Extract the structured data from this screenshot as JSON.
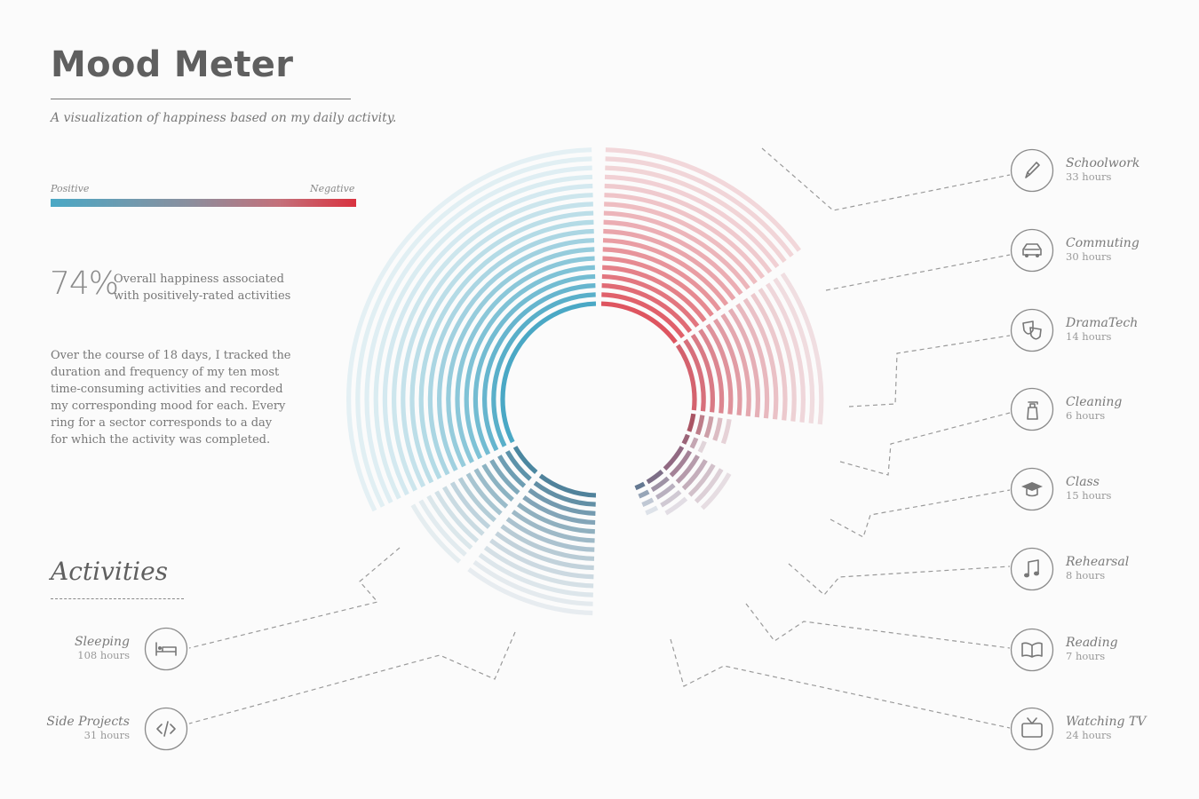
{
  "header": {
    "title": "Mood Meter",
    "subtitle": "A visualization of happiness based on my daily activity."
  },
  "legend": {
    "positive_label": "Positive",
    "negative_label": "Negative",
    "positive_color": "#4aa8c5",
    "negative_color": "#d9323f"
  },
  "stat": {
    "value": "74%",
    "line1": "Overall happiness associated",
    "line2": "with positively-rated activities"
  },
  "description": [
    "Over the course of 18 days, I tracked the",
    "duration and frequency of my ten most",
    "time-consuming activities and recorded",
    "my corresponding mood for each. Every",
    "ring for a sector corresponds to a  day",
    "for which the activity was completed."
  ],
  "activities_heading": "Activities",
  "activities": [
    {
      "name": "Schoolwork",
      "hours_label": "33 hours",
      "hours": 33,
      "icon": "pencil-icon"
    },
    {
      "name": "Commuting",
      "hours_label": "30 hours",
      "hours": 30,
      "icon": "car-icon"
    },
    {
      "name": "DramaTech",
      "hours_label": "14 hours",
      "hours": 14,
      "icon": "theater-masks-icon"
    },
    {
      "name": "Cleaning",
      "hours_label": "6 hours",
      "hours": 6,
      "icon": "spray-bottle-icon"
    },
    {
      "name": "Class",
      "hours_label": "15 hours",
      "hours": 15,
      "icon": "graduation-cap-icon"
    },
    {
      "name": "Rehearsal",
      "hours_label": "8 hours",
      "hours": 8,
      "icon": "music-note-icon"
    },
    {
      "name": "Reading",
      "hours_label": "7 hours",
      "hours": 7,
      "icon": "book-icon"
    },
    {
      "name": "Watching TV",
      "hours_label": "24 hours",
      "hours": 24,
      "icon": "tv-icon"
    },
    {
      "name": "Side Projects",
      "hours_label": "31 hours",
      "hours": 31,
      "icon": "code-icon"
    },
    {
      "name": "Sleeping",
      "hours_label": "108 hours",
      "hours": 108,
      "icon": "bed-icon"
    }
  ],
  "chart_data": {
    "type": "radial-ring",
    "days": 18,
    "overall_happiness": "74%",
    "colors": {
      "positive": "#4aa8c5",
      "negative": "#d9323f"
    },
    "sectors": [
      {
        "name": "Sleeping",
        "mood": "positive",
        "rings": 18
      },
      {
        "name": "Side Projects",
        "mood": "positive-neutral",
        "rings": 14
      },
      {
        "name": "Watching TV",
        "mood": "positive-neutral",
        "rings": 14
      },
      {
        "name": "Reading",
        "mood": "neutral",
        "rings": 4
      },
      {
        "name": "Rehearsal",
        "mood": "neutral-negative",
        "rings": 5
      },
      {
        "name": "Class",
        "mood": "neutral-negative",
        "rings": 7
      },
      {
        "name": "Cleaning",
        "mood": "negative",
        "rings": 3
      },
      {
        "name": "DramaTech",
        "mood": "negative",
        "rings": 5
      },
      {
        "name": "Commuting",
        "mood": "negative",
        "rings": 15
      },
      {
        "name": "Schoolwork",
        "mood": "negative",
        "rings": 18
      }
    ]
  }
}
